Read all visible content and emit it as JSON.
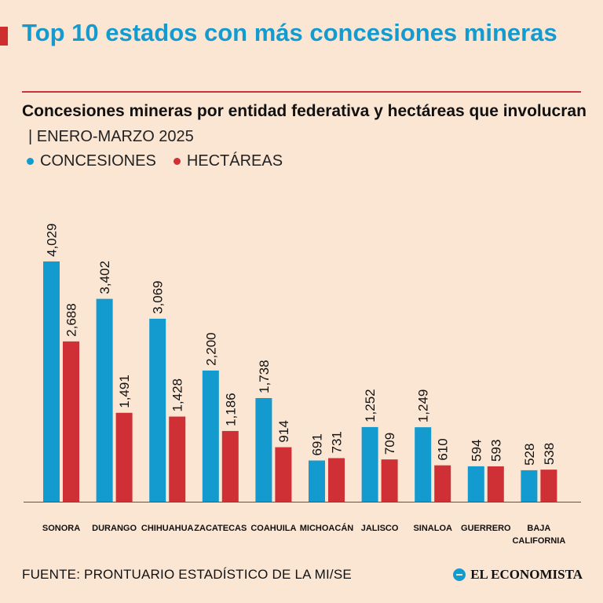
{
  "header": {
    "title": "Top 10 estados con más concesiones mineras",
    "subtitle": "Concesiones mineras por entidad federativa y hectáreas que involucran",
    "period": "| ENERO-MARZO 2025"
  },
  "legend": {
    "concesiones_label": "CONCESIONES",
    "hectareas_label": "HECTÁREAS"
  },
  "colors": {
    "concesiones": "#139bd0",
    "hectareas": "#cf3036",
    "title": "#139bd0",
    "background": "#fbe6d4"
  },
  "chart_data": {
    "type": "bar",
    "title": "Concesiones mineras por entidad federativa y hectáreas que involucran",
    "xlabel": "",
    "ylabel": "",
    "ylim": [
      0,
      4029
    ],
    "categories": [
      [
        "SONORA"
      ],
      [
        "DURANGO"
      ],
      [
        "CHIHUAHUA"
      ],
      [
        "ZACATECAS"
      ],
      [
        "COAHUILA"
      ],
      [
        "MICHOACÁN"
      ],
      [
        "JALISCO"
      ],
      [
        "SINALOA"
      ],
      [
        "GUERRERO"
      ],
      [
        "BAJA",
        "CALIFORNIA"
      ]
    ],
    "series": [
      {
        "name": "CONCESIONES",
        "values": [
          4029,
          3402,
          3069,
          2200,
          1738,
          691,
          1252,
          1249,
          594,
          528
        ],
        "labels": [
          "4,029",
          "3,402",
          "3,069",
          "2,200",
          "1,738",
          "691",
          "1,252",
          "1,249",
          "594",
          "528"
        ]
      },
      {
        "name": "HECTÁREAS",
        "values": [
          2688,
          1491,
          1428,
          1186,
          914,
          731,
          709,
          610,
          593,
          538
        ],
        "labels": [
          "2,688",
          "1,491",
          "1,428",
          "1,186",
          "914",
          "731",
          "709",
          "610",
          "593",
          "538"
        ]
      }
    ]
  },
  "footer": {
    "source": "FUENTE: PRONTUARIO ESTADÍSTICO DE LA MI/SE",
    "brand": "EL ECONOMISTA"
  }
}
